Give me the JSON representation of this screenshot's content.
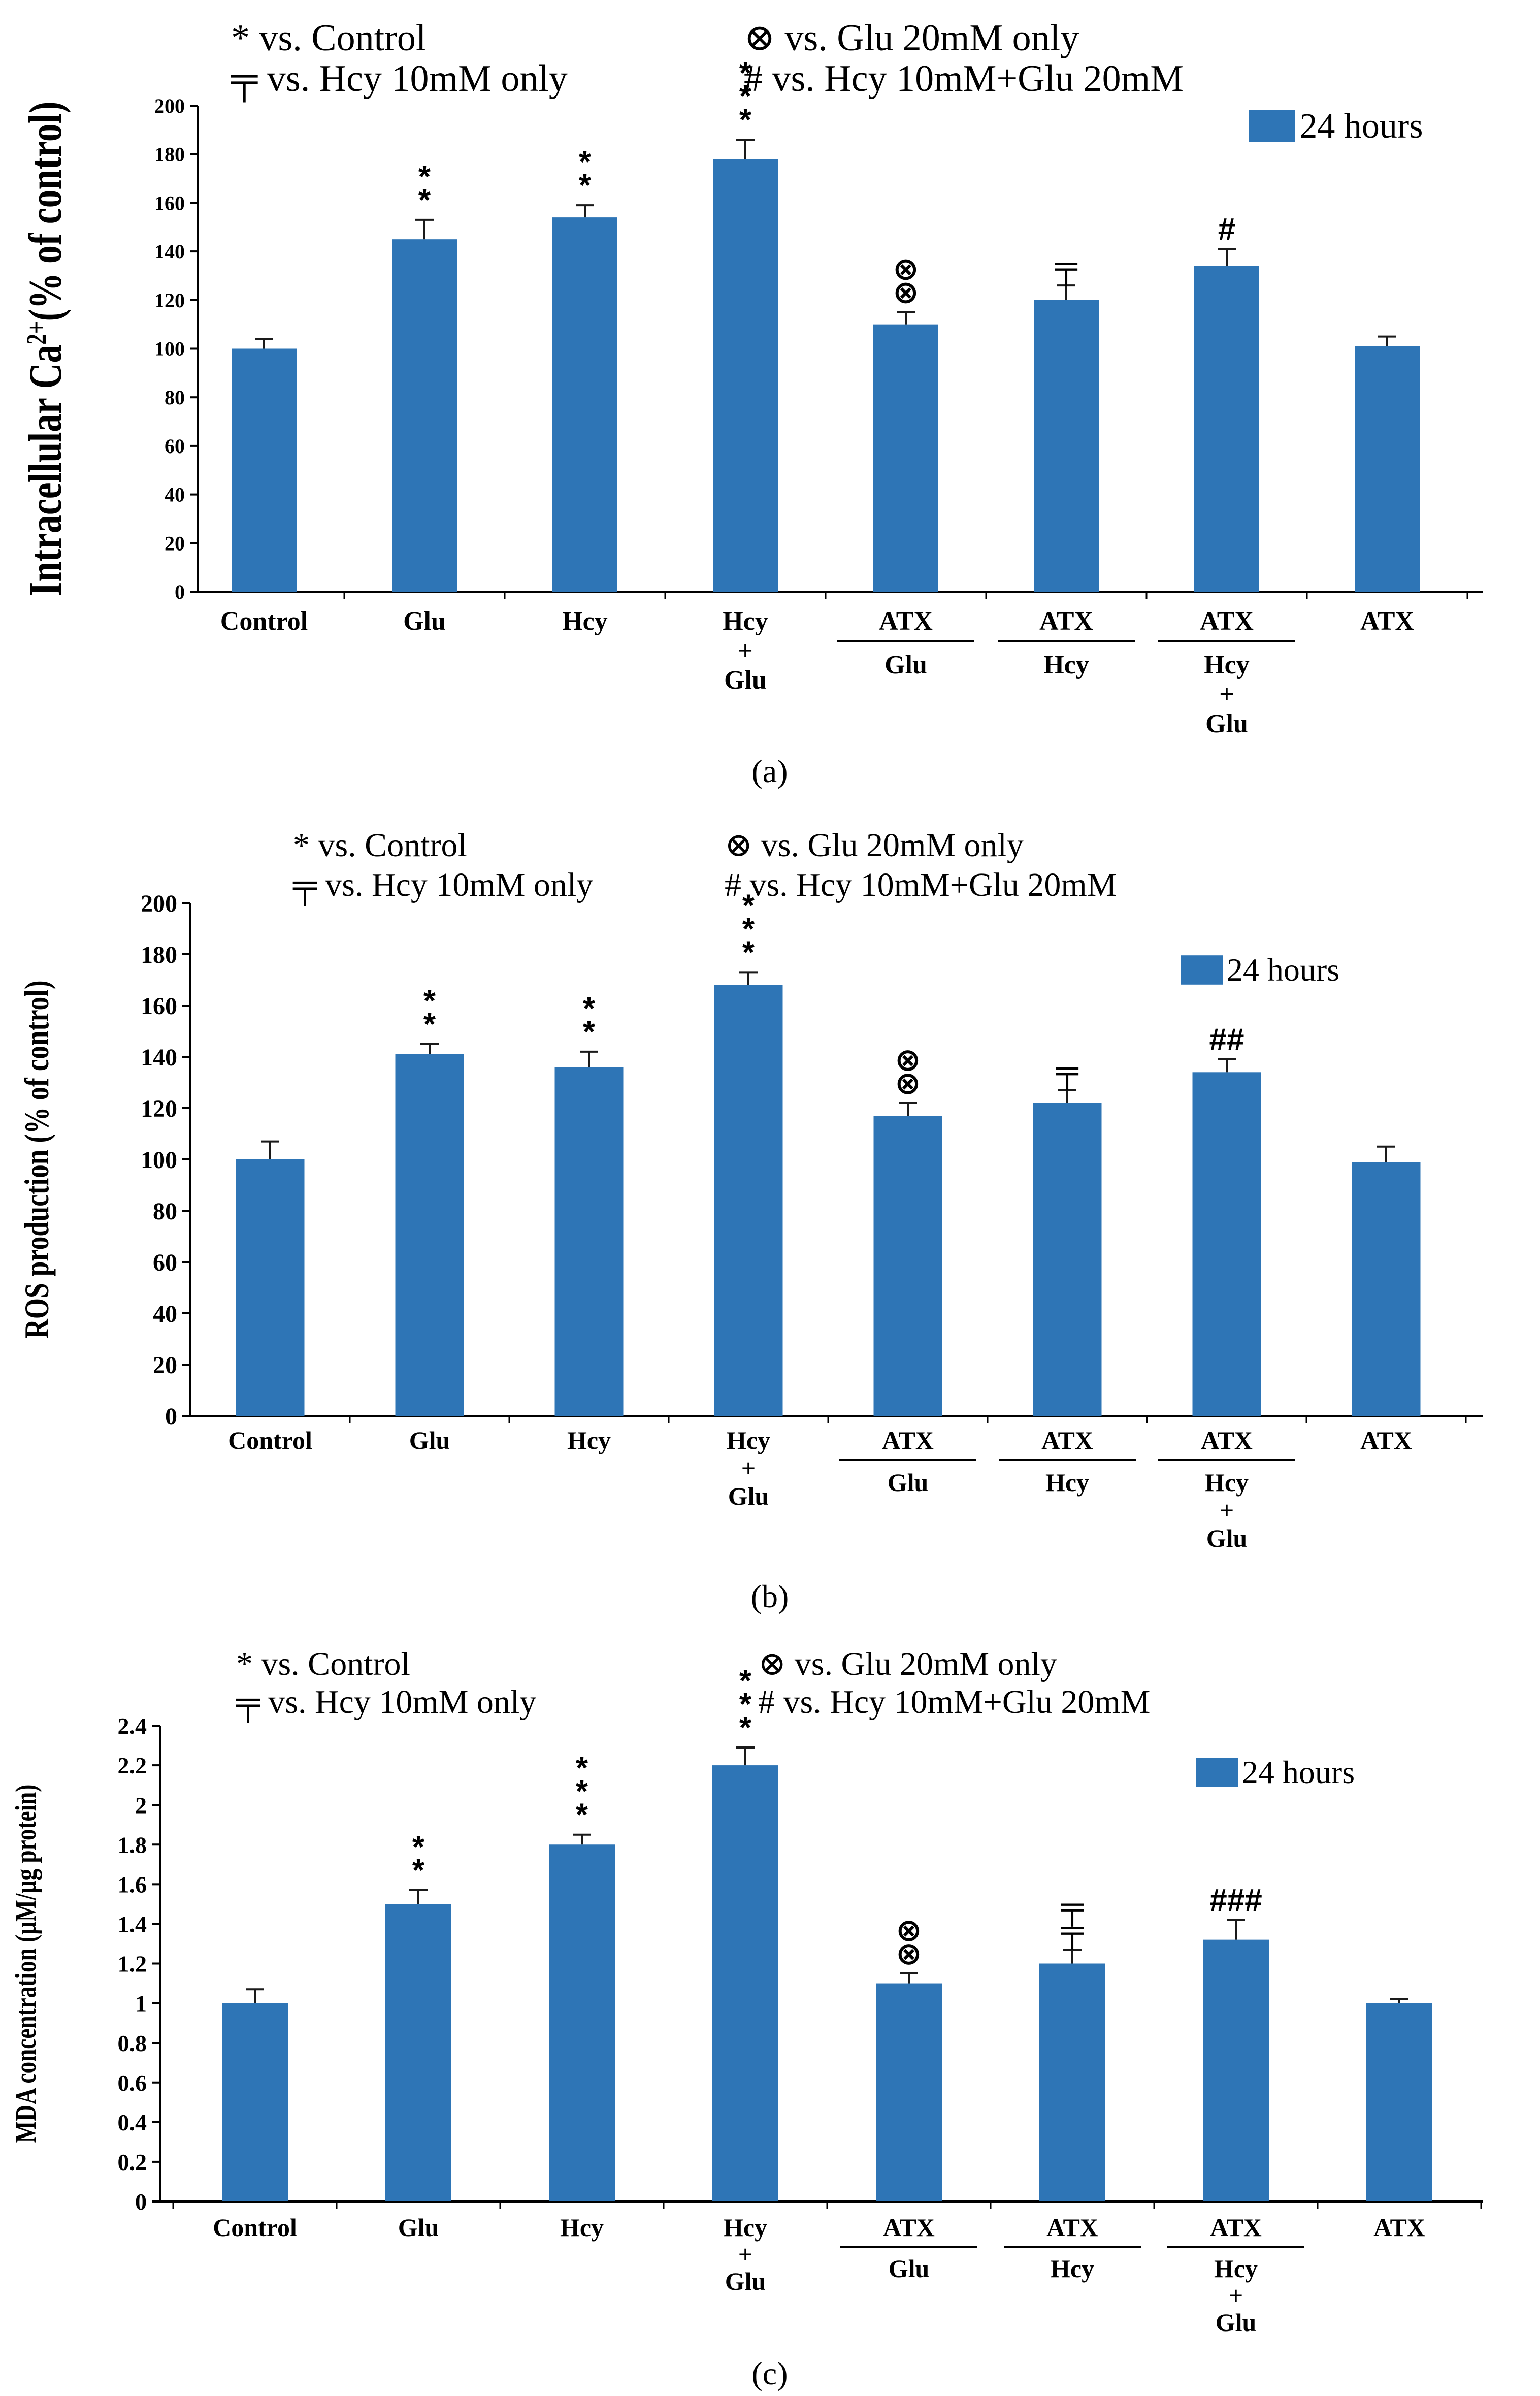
{
  "colors": {
    "bar": "#2E75B6",
    "axis": "#000000",
    "text": "#000000"
  },
  "chart_data": [
    {
      "type": "bar",
      "panel_label": "(a)",
      "ylabel": "Intracellular Ca2+(% of control)",
      "ylabel_parts": {
        "prefix": "Intracellular Ca",
        "sup": "2+",
        "suffix": "(% of control)"
      },
      "ylim": [
        0,
        200
      ],
      "yticks": [
        0,
        20,
        40,
        60,
        80,
        100,
        120,
        140,
        160,
        180,
        200
      ],
      "legend": {
        "series": "24 hours",
        "notes": [
          "* vs. Control",
          "⊗ vs. Glu 20mM only",
          "╤ vs. Hcy 10mM only",
          "# vs. Hcy 10mM+Glu 20mM"
        ]
      },
      "categories": [
        {
          "top": [
            "Control"
          ],
          "bottom": []
        },
        {
          "top": [
            "Glu"
          ],
          "bottom": []
        },
        {
          "top": [
            "Hcy"
          ],
          "bottom": []
        },
        {
          "top": [
            "Hcy",
            "+",
            "Glu"
          ],
          "bottom": []
        },
        {
          "top": [
            "ATX"
          ],
          "bottom": [
            "Glu"
          ]
        },
        {
          "top": [
            "ATX"
          ],
          "bottom": [
            "Hcy"
          ]
        },
        {
          "top": [
            "ATX"
          ],
          "bottom": [
            "Hcy",
            "+",
            "Glu"
          ]
        },
        {
          "top": [
            "ATX"
          ],
          "bottom": []
        }
      ],
      "values": [
        100,
        145,
        154,
        178,
        110,
        120,
        134,
        101
      ],
      "errors": [
        4,
        8,
        5,
        8,
        5,
        6,
        7,
        4
      ],
      "sig": [
        [],
        [
          "*",
          "*"
        ],
        [
          "*",
          "*"
        ],
        [
          "*",
          "*",
          "*"
        ],
        [
          "⊗",
          "⊗"
        ],
        [
          "╤"
        ],
        [
          "#"
        ],
        []
      ]
    },
    {
      "type": "bar",
      "panel_label": "(b)",
      "ylabel": "ROS production (% of control)",
      "ylabel_parts": {
        "prefix": "ROS production (% of control)",
        "sup": "",
        "suffix": ""
      },
      "ylim": [
        0,
        200
      ],
      "yticks": [
        0,
        20,
        40,
        60,
        80,
        100,
        120,
        140,
        160,
        180,
        200
      ],
      "legend": {
        "series": "24 hours",
        "notes": [
          "* vs. Control",
          "⊗ vs. Glu 20mM only",
          "╤ vs. Hcy 10mM only",
          "# vs. Hcy 10mM+Glu 20mM"
        ]
      },
      "categories": [
        {
          "top": [
            "Control"
          ],
          "bottom": []
        },
        {
          "top": [
            "Glu"
          ],
          "bottom": []
        },
        {
          "top": [
            "Hcy"
          ],
          "bottom": []
        },
        {
          "top": [
            "Hcy",
            "+",
            "Glu"
          ],
          "bottom": []
        },
        {
          "top": [
            "ATX"
          ],
          "bottom": [
            "Glu"
          ]
        },
        {
          "top": [
            "ATX"
          ],
          "bottom": [
            "Hcy"
          ]
        },
        {
          "top": [
            "ATX"
          ],
          "bottom": [
            "Hcy",
            "+",
            "Glu"
          ]
        },
        {
          "top": [
            "ATX"
          ],
          "bottom": []
        }
      ],
      "values": [
        100,
        141,
        136,
        168,
        117,
        122,
        134,
        99
      ],
      "errors": [
        7,
        4,
        6,
        5,
        5,
        5,
        5,
        6
      ],
      "sig": [
        [],
        [
          "*",
          "*"
        ],
        [
          "*",
          "*"
        ],
        [
          "*",
          "*",
          "*"
        ],
        [
          "⊗",
          "⊗"
        ],
        [
          "╤"
        ],
        [
          "##"
        ],
        []
      ]
    },
    {
      "type": "bar",
      "panel_label": "(c)",
      "ylabel": "MDA concentration (µM/µg protein)",
      "ylabel_parts": {
        "prefix": "MDA concentration (µM/µg protein)",
        "sup": "",
        "suffix": ""
      },
      "ylim": [
        0,
        2.4
      ],
      "yticks": [
        "0",
        "0.2",
        "0.4",
        "0.6",
        "0.8",
        "1",
        "1.2",
        "1.4",
        "1.6",
        "1.8",
        "2",
        "2.2",
        "2.4"
      ],
      "legend": {
        "series": "24 hours",
        "notes": [
          "* vs. Control",
          "⊗ vs. Glu 20mM only",
          "╤ vs. Hcy 10mM only",
          "# vs. Hcy 10mM+Glu 20mM"
        ]
      },
      "categories": [
        {
          "top": [
            "Control"
          ],
          "bottom": []
        },
        {
          "top": [
            "Glu"
          ],
          "bottom": []
        },
        {
          "top": [
            "Hcy"
          ],
          "bottom": []
        },
        {
          "top": [
            "Hcy",
            "+",
            "Glu"
          ],
          "bottom": []
        },
        {
          "top": [
            "ATX"
          ],
          "bottom": [
            "Glu"
          ]
        },
        {
          "top": [
            "ATX"
          ],
          "bottom": [
            "Hcy"
          ]
        },
        {
          "top": [
            "ATX"
          ],
          "bottom": [
            "Hcy",
            "+",
            "Glu"
          ]
        },
        {
          "top": [
            "ATX"
          ],
          "bottom": []
        }
      ],
      "values": [
        1.0,
        1.5,
        1.8,
        2.2,
        1.1,
        1.2,
        1.32,
        1.0
      ],
      "errors": [
        0.07,
        0.07,
        0.05,
        0.09,
        0.05,
        0.07,
        0.1,
        0.02
      ],
      "sig": [
        [],
        [
          "*",
          "*"
        ],
        [
          "*",
          "*",
          "*"
        ],
        [
          "*",
          "*",
          "*"
        ],
        [
          "⊗",
          "⊗"
        ],
        [
          "╤",
          "╤"
        ],
        [
          "###"
        ],
        []
      ]
    }
  ]
}
